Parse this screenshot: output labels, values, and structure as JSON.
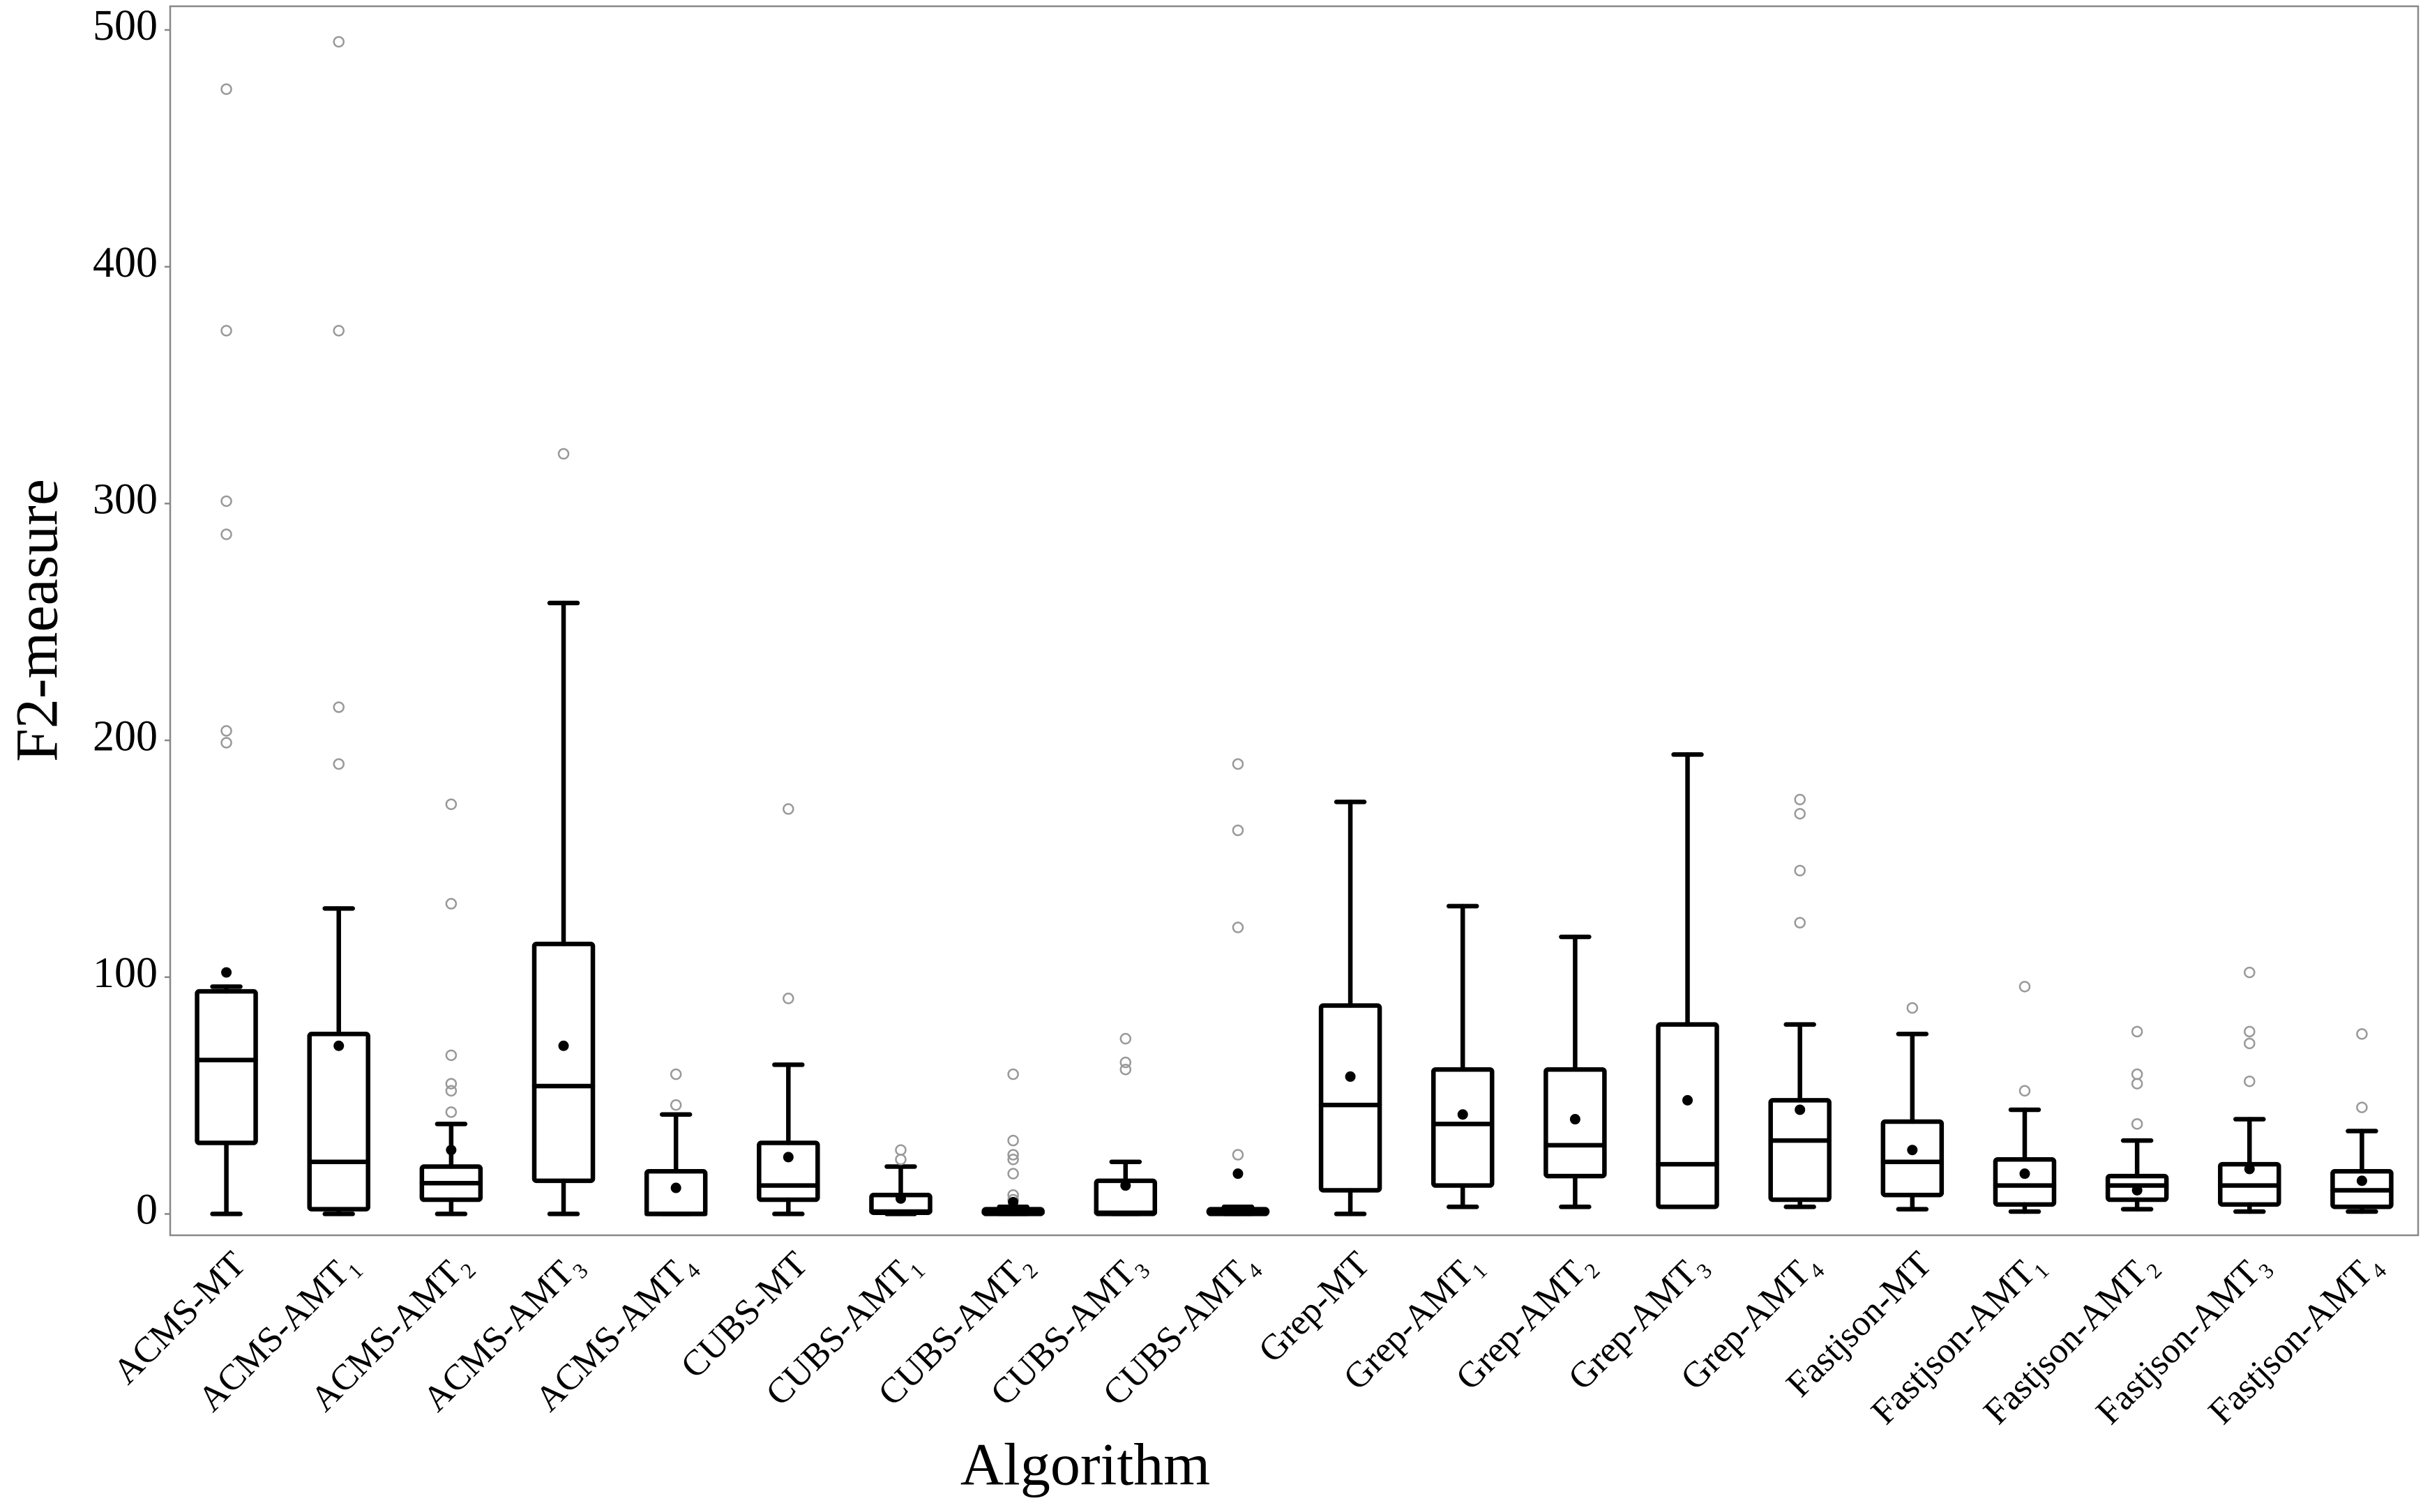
{
  "chart_data": {
    "type": "box",
    "x_label": "Algorithm",
    "y_label": "F2-measure",
    "ylim": [
      -9,
      510
    ],
    "yticks": [
      0,
      100,
      200,
      300,
      400,
      500
    ],
    "box_color": "#000000",
    "outlier_color": "#999999",
    "categories": [
      "ACMS-MT",
      "ACMS-AMT₁",
      "ACMS-AMT₂",
      "ACMS-AMT₃",
      "ACMS-AMT₄",
      "CUBS-MT",
      "CUBS-AMT₁",
      "CUBS-AMT₂",
      "CUBS-AMT₃",
      "CUBS-AMT₄",
      "Grep-MT",
      "Grep-AMT₁",
      "Grep-AMT₂",
      "Grep-AMT₃",
      "Grep-AMT₄",
      "Fastjson-MT",
      "Fastjson-AMT₁",
      "Fastjson-AMT₂",
      "Fastjson-AMT₃",
      "Fastjson-AMT₄"
    ],
    "boxes": [
      {
        "whisker_low": 0,
        "q1": 30,
        "median": 65,
        "q3": 94,
        "whisker_high": 96,
        "mean": 102,
        "outliers": [
          475,
          373,
          301,
          287,
          204,
          199
        ]
      },
      {
        "whisker_low": 0,
        "q1": 2,
        "median": 22,
        "q3": 76,
        "whisker_high": 129,
        "mean": 71,
        "outliers": [
          190,
          214,
          373,
          495
        ]
      },
      {
        "whisker_low": 0,
        "q1": 6,
        "median": 13,
        "q3": 20,
        "whisker_high": 38,
        "mean": 27,
        "outliers": [
          43,
          52,
          55,
          67,
          131,
          173
        ]
      },
      {
        "whisker_low": 0,
        "q1": 14,
        "median": 54,
        "q3": 114,
        "whisker_high": 258,
        "mean": 71,
        "outliers": [
          321
        ]
      },
      {
        "whisker_low": 0,
        "q1": 0,
        "median": 0,
        "q3": 18,
        "whisker_high": 42,
        "mean": 11,
        "outliers": [
          46,
          59
        ]
      },
      {
        "whisker_low": 0,
        "q1": 6,
        "median": 12,
        "q3": 30,
        "whisker_high": 63,
        "mean": 24,
        "outliers": [
          91,
          171
        ]
      },
      {
        "whisker_low": 0,
        "q1": 0.5,
        "median": 1,
        "q3": 8,
        "whisker_high": 20,
        "mean": 6.5,
        "outliers": [
          23,
          27
        ]
      },
      {
        "whisker_low": 0,
        "q1": 0,
        "median": 0.5,
        "q3": 2,
        "whisker_high": 3,
        "mean": 5,
        "outliers": [
          6,
          8,
          17,
          23,
          25,
          31,
          59
        ]
      },
      {
        "whisker_low": 0,
        "q1": 0,
        "median": 0.5,
        "q3": 14,
        "whisker_high": 22,
        "mean": 12,
        "outliers": [
          61,
          64,
          74
        ]
      },
      {
        "whisker_low": 0,
        "q1": 0,
        "median": 1,
        "q3": 2,
        "whisker_high": 3,
        "mean": 17,
        "outliers": [
          25,
          121,
          162,
          190
        ]
      },
      {
        "whisker_low": 0,
        "q1": 10,
        "median": 46,
        "q3": 88,
        "whisker_high": 174,
        "mean": 58,
        "outliers": []
      },
      {
        "whisker_low": 3,
        "q1": 12,
        "median": 38,
        "q3": 61,
        "whisker_high": 130,
        "mean": 42,
        "outliers": []
      },
      {
        "whisker_low": 3,
        "q1": 16,
        "median": 29,
        "q3": 61,
        "whisker_high": 117,
        "mean": 40,
        "outliers": []
      },
      {
        "whisker_low": 3,
        "q1": 3,
        "median": 21,
        "q3": 80,
        "whisker_high": 194,
        "mean": 48,
        "outliers": []
      },
      {
        "whisker_low": 3,
        "q1": 6,
        "median": 31,
        "q3": 48,
        "whisker_high": 80,
        "mean": 44,
        "outliers": [
          123,
          145,
          169,
          175
        ]
      },
      {
        "whisker_low": 2,
        "q1": 8,
        "median": 22,
        "q3": 39,
        "whisker_high": 76,
        "mean": 27,
        "outliers": [
          87
        ]
      },
      {
        "whisker_low": 1,
        "q1": 4,
        "median": 12,
        "q3": 23,
        "whisker_high": 44,
        "mean": 17,
        "outliers": [
          52,
          96
        ]
      },
      {
        "whisker_low": 2,
        "q1": 6,
        "median": 12,
        "q3": 16,
        "whisker_high": 31,
        "mean": 10,
        "outliers": [
          38,
          55,
          59,
          77
        ]
      },
      {
        "whisker_low": 1,
        "q1": 4,
        "median": 12,
        "q3": 21,
        "whisker_high": 40,
        "mean": 19,
        "outliers": [
          56,
          72,
          77,
          102
        ]
      },
      {
        "whisker_low": 1,
        "q1": 3,
        "median": 10,
        "q3": 18,
        "whisker_high": 35,
        "mean": 14,
        "outliers": [
          45,
          76
        ]
      }
    ]
  }
}
